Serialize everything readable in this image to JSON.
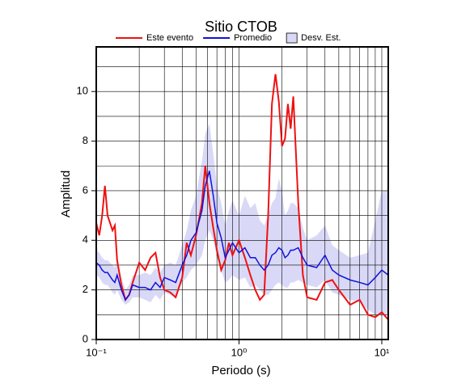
{
  "chart_data": {
    "type": "line",
    "title": "Sitio CTOB",
    "x_label": "Periodo (s)",
    "y_label": "Amplitud",
    "x_log": true,
    "grid": true,
    "x": [
      0.1,
      0.105,
      0.11,
      0.115,
      0.12,
      0.13,
      0.135,
      0.14,
      0.15,
      0.16,
      0.17,
      0.18,
      0.2,
      0.22,
      0.24,
      0.26,
      0.28,
      0.3,
      0.33,
      0.36,
      0.4,
      0.43,
      0.46,
      0.5,
      0.55,
      0.58,
      0.62,
      0.66,
      0.7,
      0.75,
      0.8,
      0.85,
      0.9,
      1.0,
      1.1,
      1.2,
      1.3,
      1.4,
      1.5,
      1.6,
      1.7,
      1.8,
      1.9,
      2.0,
      2.1,
      2.2,
      2.3,
      2.4,
      2.6,
      2.8,
      3.0,
      3.5,
      4.0,
      4.5,
      5.0,
      6.0,
      7.0,
      8.0,
      9.0,
      10,
      11.1
    ],
    "bands": [
      {
        "name": "Desv. Est.",
        "color": "#d9d9f7",
        "upper": [
          3.6,
          3.5,
          3.3,
          3.2,
          3.2,
          3.0,
          2.9,
          3.2,
          2.5,
          2.0,
          2.2,
          2.6,
          2.6,
          2.7,
          2.6,
          2.9,
          2.7,
          3.0,
          3.1,
          3.0,
          3.8,
          4.4,
          5.2,
          5.8,
          7.2,
          8.3,
          8.7,
          7.5,
          6.2,
          5.5,
          4.6,
          5.2,
          5.6,
          5.0,
          5.8,
          5.3,
          5.5,
          4.8,
          4.6,
          5.0,
          5.5,
          5.7,
          6.5,
          6.0,
          5.0,
          5.2,
          5.5,
          5.5,
          5.3,
          4.5,
          4.0,
          4.2,
          4.6,
          3.8,
          3.6,
          3.3,
          3.4,
          3.5,
          4.8,
          6.0,
          6.0
        ],
        "lower": [
          2.6,
          2.5,
          2.3,
          2.2,
          2.2,
          1.9,
          1.8,
          2.0,
          1.6,
          1.4,
          1.5,
          1.7,
          1.7,
          1.6,
          1.5,
          1.8,
          1.6,
          1.9,
          1.8,
          1.7,
          2.3,
          2.5,
          2.8,
          3.0,
          3.4,
          4.0,
          4.4,
          4.0,
          3.3,
          2.8,
          2.3,
          2.4,
          2.6,
          2.4,
          2.5,
          2.1,
          2.2,
          2.0,
          1.8,
          1.8,
          2.0,
          2.2,
          2.3,
          2.2,
          2.1,
          2.1,
          2.3,
          2.3,
          2.4,
          2.3,
          2.2,
          2.1,
          2.4,
          1.9,
          1.8,
          1.6,
          1.5,
          1.2,
          1.0,
          1.0,
          1.0
        ]
      }
    ],
    "series": [
      {
        "name": "Este evento",
        "color": "#ee1111",
        "values": [
          4.7,
          4.2,
          5.0,
          6.2,
          5.0,
          4.4,
          4.6,
          3.2,
          2.2,
          1.6,
          1.8,
          2.3,
          3.1,
          2.8,
          3.3,
          3.5,
          2.5,
          2.0,
          1.9,
          1.7,
          2.5,
          3.9,
          3.4,
          4.2,
          5.5,
          7.0,
          5.5,
          4.5,
          3.6,
          2.8,
          3.2,
          3.9,
          3.4,
          4.0,
          3.3,
          2.6,
          2.0,
          1.6,
          1.8,
          5.0,
          9.5,
          10.7,
          9.6,
          7.8,
          8.1,
          9.5,
          8.5,
          9.8,
          5.5,
          2.6,
          1.7,
          1.6,
          2.3,
          2.4,
          2.0,
          1.4,
          1.6,
          1.0,
          0.9,
          1.1,
          0.8
        ]
      },
      {
        "name": "Promedio",
        "color": "#1111dd",
        "values": [
          3.1,
          3.0,
          2.8,
          2.7,
          2.7,
          2.4,
          2.3,
          2.6,
          2.0,
          1.6,
          1.8,
          2.2,
          2.1,
          2.1,
          2.0,
          2.3,
          2.1,
          2.5,
          2.4,
          2.3,
          3.0,
          3.4,
          4.0,
          4.3,
          5.2,
          6.2,
          6.8,
          5.8,
          4.7,
          4.1,
          3.3,
          3.6,
          3.9,
          3.5,
          3.7,
          3.3,
          3.3,
          3.0,
          2.8,
          3.0,
          3.4,
          3.5,
          3.7,
          3.6,
          3.3,
          3.4,
          3.6,
          3.6,
          3.7,
          3.3,
          3.0,
          2.9,
          3.4,
          2.8,
          2.6,
          2.4,
          2.3,
          2.2,
          2.5,
          2.8,
          2.6
        ]
      }
    ],
    "xlim": [
      0.1,
      11.1
    ],
    "ylim": [
      0,
      11.8
    ],
    "xticks": [
      {
        "value": 0.1,
        "label": "10⁻¹"
      },
      {
        "value": 1,
        "label": "10⁰"
      },
      {
        "value": 10,
        "label": "10¹"
      }
    ],
    "yticks": [
      0,
      2,
      4,
      6,
      8,
      10
    ],
    "minor_xticks": [
      0.2,
      0.3,
      0.4,
      0.5,
      0.6,
      0.7,
      0.8,
      0.9,
      1,
      2,
      3,
      4,
      5,
      6,
      7,
      8,
      9,
      10
    ],
    "minor_yticks": [
      1,
      2,
      3,
      4,
      5,
      6,
      7,
      8,
      9,
      10,
      11
    ]
  }
}
